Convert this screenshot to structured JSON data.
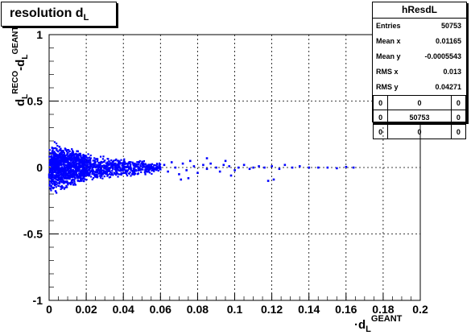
{
  "title": {
    "text": "resolution d",
    "sub": "L"
  },
  "stats": {
    "name": "hResdL",
    "rows": [
      {
        "key": "Entries",
        "value": "50753"
      },
      {
        "key": "Mean x",
        "value": "0.01165"
      },
      {
        "key": "Mean y",
        "value": "-0.0005543"
      },
      {
        "key": "RMS x",
        "value": "0.013"
      },
      {
        "key": "RMS y",
        "value": "0.04271"
      }
    ],
    "overflow": [
      [
        "0",
        "0",
        "0"
      ],
      [
        "0",
        "50753",
        "0"
      ],
      [
        "0",
        "0",
        "0"
      ]
    ]
  },
  "chart_data": {
    "type": "scatter",
    "title": "resolution d_L",
    "xlabel": "d_L^GEANT",
    "ylabel": "d_L^RECO - d_L^GEANT",
    "xlim": [
      0,
      0.2
    ],
    "ylim": [
      -1,
      1
    ],
    "x_ticks": [
      "0",
      "0.02",
      "0.04",
      "0.06",
      "0.08",
      "0.1",
      "0.12",
      "0.14",
      "0.16",
      "0.18",
      "0.2"
    ],
    "y_ticks": [
      "-1",
      "-0.5",
      "0",
      "0.5",
      "1"
    ],
    "grid": true,
    "color": "#0000ff",
    "series": [
      {
        "x": [
          0.001,
          0.002,
          0.003,
          0.004,
          0.005,
          0.006,
          0.007,
          0.008,
          0.009,
          0.01,
          0.011,
          0.012,
          0.013,
          0.014,
          0.015,
          0.016,
          0.017,
          0.018,
          0.019,
          0.02
        ],
        "y_halfwidth": [
          0.21,
          0.2,
          0.2,
          0.19,
          0.19,
          0.18,
          0.18,
          0.17,
          0.17,
          0.16,
          0.16,
          0.15,
          0.15,
          0.14,
          0.14,
          0.13,
          0.13,
          0.12,
          0.12,
          0.11
        ]
      },
      {
        "x": [
          0.021,
          0.023,
          0.025,
          0.027,
          0.029,
          0.031,
          0.033,
          0.035,
          0.037,
          0.039,
          0.041,
          0.043,
          0.045,
          0.047,
          0.049,
          0.051,
          0.053,
          0.055,
          0.057,
          0.059
        ],
        "y_halfwidth": [
          0.11,
          0.1,
          0.1,
          0.095,
          0.09,
          0.09,
          0.085,
          0.08,
          0.08,
          0.075,
          0.07,
          0.07,
          0.065,
          0.06,
          0.06,
          0.055,
          0.05,
          0.05,
          0.045,
          0.045
        ]
      }
    ],
    "sparse_points": [
      [
        0.062,
        0.02
      ],
      [
        0.064,
        -0.03
      ],
      [
        0.066,
        0.04
      ],
      [
        0.068,
        0.0
      ],
      [
        0.07,
        -0.05
      ],
      [
        0.072,
        0.03
      ],
      [
        0.074,
        -0.02
      ],
      [
        0.076,
        0.05
      ],
      [
        0.078,
        0.01
      ],
      [
        0.08,
        -0.04
      ],
      [
        0.083,
        0.02
      ],
      [
        0.085,
        -0.01
      ],
      [
        0.087,
        0.03
      ],
      [
        0.09,
        0.0
      ],
      [
        0.092,
        -0.03
      ],
      [
        0.094,
        0.02
      ],
      [
        0.097,
        0.01
      ],
      [
        0.1,
        -0.02
      ],
      [
        0.102,
        0.0
      ],
      [
        0.105,
        0.02
      ],
      [
        0.108,
        -0.01
      ],
      [
        0.11,
        0.0
      ],
      [
        0.113,
        0.01
      ],
      [
        0.116,
        0.0
      ],
      [
        0.12,
        0.01
      ],
      [
        0.124,
        -0.01
      ],
      [
        0.127,
        0.02
      ],
      [
        0.131,
        0.0
      ],
      [
        0.135,
        0.01
      ],
      [
        0.14,
        0.0
      ],
      [
        0.145,
        0.0
      ],
      [
        0.15,
        0.0
      ],
      [
        0.155,
        -0.005
      ],
      [
        0.16,
        0.005
      ],
      [
        0.164,
        0.0
      ],
      [
        0.121,
        -0.09
      ],
      [
        0.118,
        -0.1
      ],
      [
        0.098,
        -0.06
      ],
      [
        0.075,
        -0.08
      ],
      [
        0.085,
        0.07
      ],
      [
        0.095,
        0.05
      ],
      [
        0.071,
        -0.09
      ]
    ]
  }
}
